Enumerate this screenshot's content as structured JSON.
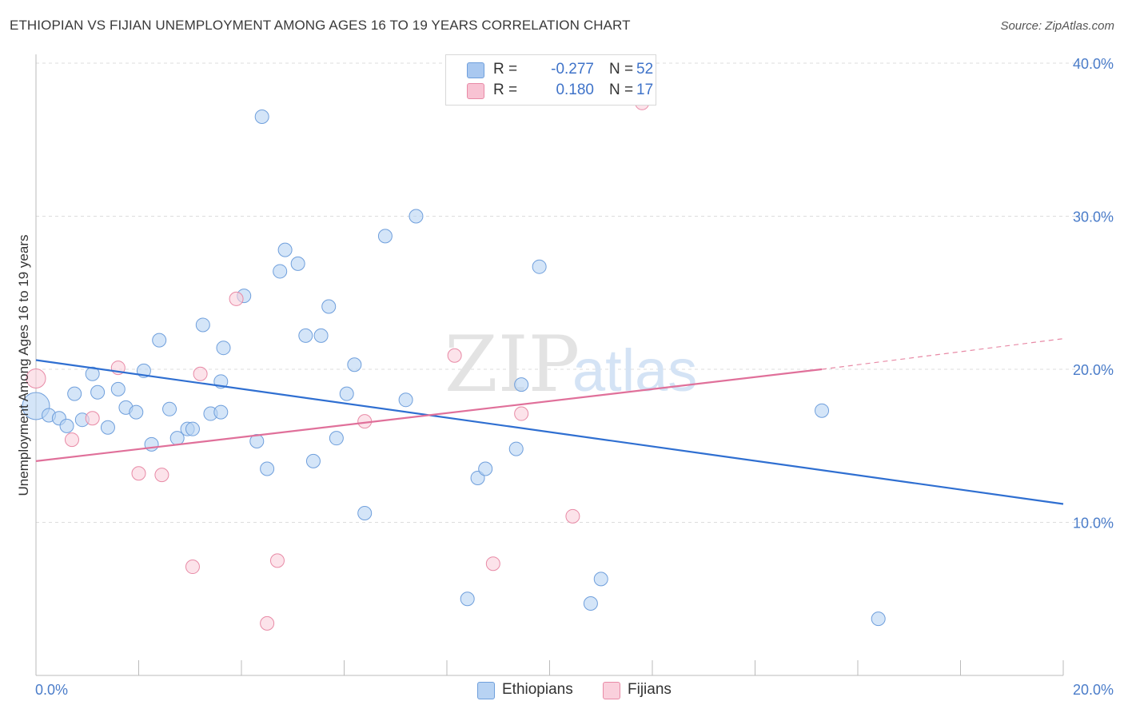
{
  "title": "ETHIOPIAN VS FIJIAN UNEMPLOYMENT AMONG AGES 16 TO 19 YEARS CORRELATION CHART",
  "source": "Source: ZipAtlas.com",
  "watermark": {
    "zip": "ZIP",
    "atlas": "atlas"
  },
  "legend": {
    "rows": [
      {
        "label": "R =",
        "r": "-0.277",
        "n_label": "N =",
        "n": "52",
        "color": "#a9c8f0",
        "border": "#6f9fdc"
      },
      {
        "label": "R =",
        "r": "0.180",
        "n_label": "N =",
        "n": "17",
        "color": "#f8c3d3",
        "border": "#e88aa6"
      }
    ]
  },
  "bottom_legend": [
    {
      "label": "Ethiopians",
      "color": "#b8d3f3",
      "border": "#6f9fdc"
    },
    {
      "label": "Fijians",
      "color": "#fad0dc",
      "border": "#e88aa6"
    }
  ],
  "chart_data": {
    "type": "scatter",
    "title": "ETHIOPIAN VS FIJIAN UNEMPLOYMENT AMONG AGES 16 TO 19 YEARS CORRELATION CHART",
    "xlabel": "",
    "ylabel": "Unemployment Among Ages 16 to 19 years",
    "xlim": [
      0,
      20
    ],
    "ylim": [
      0,
      40
    ],
    "x_tick_labels": [
      "0.0%",
      "20.0%"
    ],
    "y_ticks": [
      10,
      20,
      30,
      40
    ],
    "y_tick_labels": [
      "10.0%",
      "20.0%",
      "30.0%",
      "40.0%"
    ],
    "grid": true,
    "series": [
      {
        "name": "Ethiopians",
        "color": "#6f9fdc",
        "fill": "#b8d3f3",
        "trend": {
          "x0": 0,
          "y0": 20.6,
          "x1": 20,
          "y1": 11.2
        },
        "points": [
          [
            0.0,
            17.6
          ],
          [
            0.25,
            17.0
          ],
          [
            0.45,
            16.8
          ],
          [
            0.6,
            16.3
          ],
          [
            0.75,
            18.4
          ],
          [
            0.9,
            16.7
          ],
          [
            1.1,
            19.7
          ],
          [
            1.2,
            18.5
          ],
          [
            1.4,
            16.2
          ],
          [
            1.6,
            18.7
          ],
          [
            1.75,
            17.5
          ],
          [
            1.95,
            17.2
          ],
          [
            2.1,
            19.9
          ],
          [
            2.25,
            15.1
          ],
          [
            2.4,
            21.9
          ],
          [
            2.6,
            17.4
          ],
          [
            2.75,
            15.5
          ],
          [
            2.95,
            16.1
          ],
          [
            3.05,
            16.1
          ],
          [
            3.25,
            22.9
          ],
          [
            3.4,
            17.1
          ],
          [
            3.6,
            19.2
          ],
          [
            3.65,
            21.4
          ],
          [
            3.6,
            17.2
          ],
          [
            4.05,
            24.8
          ],
          [
            4.3,
            15.3
          ],
          [
            4.4,
            36.5
          ],
          [
            4.5,
            13.5
          ],
          [
            4.75,
            26.4
          ],
          [
            4.85,
            27.8
          ],
          [
            5.1,
            26.9
          ],
          [
            5.25,
            22.2
          ],
          [
            5.4,
            14.0
          ],
          [
            5.55,
            22.2
          ],
          [
            5.7,
            24.1
          ],
          [
            5.85,
            15.5
          ],
          [
            6.05,
            18.4
          ],
          [
            6.2,
            20.3
          ],
          [
            6.4,
            10.6
          ],
          [
            6.8,
            28.7
          ],
          [
            7.2,
            18.0
          ],
          [
            7.4,
            30.0
          ],
          [
            8.4,
            5.0
          ],
          [
            8.6,
            12.9
          ],
          [
            8.75,
            13.5
          ],
          [
            9.35,
            14.8
          ],
          [
            9.45,
            19.0
          ],
          [
            9.8,
            26.7
          ],
          [
            10.8,
            4.7
          ],
          [
            11.0,
            6.3
          ],
          [
            15.3,
            17.3
          ],
          [
            16.4,
            3.7
          ]
        ]
      },
      {
        "name": "Fijians",
        "color": "#e88aa6",
        "fill": "#fad0dc",
        "trend": {
          "x0": 0,
          "y0": 14.0,
          "x1": 15.3,
          "y1": 20.0,
          "dash_to_x": 20,
          "dash_to_y": 22.0
        },
        "points": [
          [
            0.0,
            19.4
          ],
          [
            0.7,
            15.4
          ],
          [
            1.1,
            16.8
          ],
          [
            1.6,
            20.1
          ],
          [
            2.0,
            13.2
          ],
          [
            2.45,
            13.1
          ],
          [
            3.05,
            7.1
          ],
          [
            3.2,
            19.7
          ],
          [
            3.9,
            24.6
          ],
          [
            4.5,
            3.4
          ],
          [
            4.7,
            7.5
          ],
          [
            6.4,
            16.6
          ],
          [
            8.15,
            20.9
          ],
          [
            8.9,
            7.3
          ],
          [
            9.45,
            17.1
          ],
          [
            10.45,
            10.4
          ],
          [
            11.8,
            37.4
          ]
        ]
      }
    ]
  }
}
